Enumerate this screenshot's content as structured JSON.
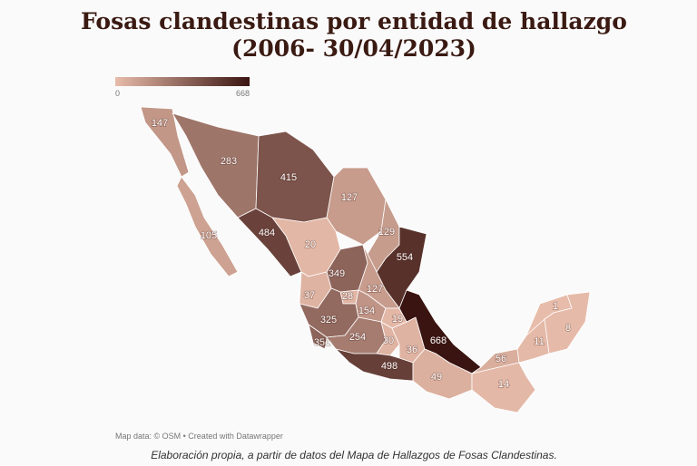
{
  "title": "Fosas clandestinas por entidad de hallazgo",
  "subtitle": "(2006- 30/04/2023)",
  "legend": {
    "min": 0,
    "max": 668,
    "colors": [
      "#e8bcaa",
      "#3a1411"
    ]
  },
  "map": {
    "values": [
      147,
      105,
      283,
      415,
      127,
      129,
      554,
      484,
      20,
      349,
      127,
      37,
      28,
      325,
      351,
      154,
      19,
      254,
      30,
      36,
      668,
      498,
      49,
      56,
      14,
      11,
      1,
      8
    ]
  },
  "source": "Map data: © OSM • Created with Datawrapper",
  "caption": "Elaboración propia, a partir de datos del Mapa de Hallazgos de Fosas Clandestinas."
}
